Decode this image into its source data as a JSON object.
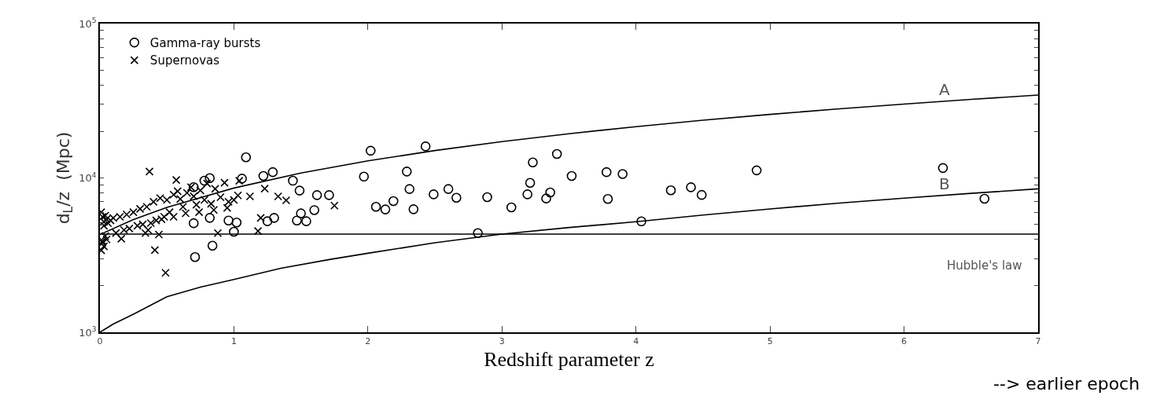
{
  "chart_data": {
    "type": "scatter",
    "xlabel": "Redshift parameter z",
    "ylabel": "d$_{L}$/z  (Mpc)",
    "log": "y",
    "legend": "top left",
    "xlim": [
      0,
      7
    ],
    "xticks": [
      0,
      1,
      2,
      3,
      4,
      5,
      6,
      7
    ],
    "ylim": [
      1000,
      100000
    ],
    "yticks": [
      {
        "value": 1000,
        "label": "10$^{3}$"
      },
      {
        "value": 2000,
        "label": null
      },
      {
        "value": 3000,
        "label": null
      },
      {
        "value": 4000,
        "label": null
      },
      {
        "value": 5000,
        "label": null
      },
      {
        "value": 6000,
        "label": null
      },
      {
        "value": 7000,
        "label": null
      },
      {
        "value": 8000,
        "label": null
      },
      {
        "value": 9000,
        "label": null
      },
      {
        "value": 10000,
        "label": "10$^{4}$"
      },
      {
        "value": 20000,
        "label": null
      },
      {
        "value": 30000,
        "label": null
      },
      {
        "value": 40000,
        "label": null
      },
      {
        "value": 50000,
        "label": null
      },
      {
        "value": 60000,
        "label": null
      },
      {
        "value": 70000,
        "label": null
      },
      {
        "value": 80000,
        "label": null
      },
      {
        "value": 90000,
        "label": null
      },
      {
        "value": 100000,
        "label": "10$^{5}$"
      }
    ],
    "ref_lines": [
      {
        "axis": "y",
        "value": 4330,
        "label": "Hubble's law",
        "color": "#000000"
      }
    ],
    "annotations": [
      "--> earlier epoch"
    ],
    "series": [
      {
        "name": "Gamma-ray bursts",
        "marker": "circle",
        "color": "#000000",
        "x": [
          2.02,
          2.43,
          1.97,
          2.29,
          2.31,
          2.49,
          2.6,
          2.66,
          2.06,
          2.13,
          2.19,
          2.34,
          2.89,
          2.82,
          3.07,
          3.23,
          3.41,
          3.21,
          3.19,
          3.36,
          3.33,
          3.52,
          3.78,
          3.9,
          3.79,
          1.62,
          1.71,
          4.26,
          4.41,
          4.49,
          4.04,
          4.9,
          6.29,
          6.6,
          1.09,
          1.06,
          1.22,
          1.29,
          1.44,
          1.49,
          1.6,
          1.47,
          1.54,
          1.5,
          1.3,
          1.25,
          1.02,
          1.0,
          0.96,
          0.84,
          0.71,
          0.7,
          0.82,
          0.7,
          0.78,
          0.82
        ],
        "values": [
          15000,
          16000,
          10200,
          11000,
          8470,
          7830,
          8470,
          7440,
          6500,
          6250,
          7080,
          6270,
          7500,
          4390,
          6440,
          12600,
          14300,
          9290,
          7830,
          8050,
          7360,
          10300,
          10900,
          10600,
          7310,
          7740,
          7740,
          8310,
          8700,
          7760,
          5230,
          11200,
          11600,
          7330,
          13600,
          9900,
          10300,
          10900,
          9590,
          8280,
          6190,
          5300,
          5240,
          5890,
          5510,
          5240,
          5140,
          4480,
          5300,
          3640,
          3070,
          5090,
          5510,
          8710,
          9590,
          9970
        ]
      },
      {
        "name": "Supernovas",
        "marker": "cross",
        "color": "#000000",
        "x": [
          0.01,
          0.01,
          0.02,
          0.02,
          0.02,
          0.03,
          0.03,
          0.03,
          0.04,
          0.04,
          0.05,
          0.05,
          0.06,
          0.08,
          0.1,
          0.12,
          0.15,
          0.18,
          0.2,
          0.22,
          0.25,
          0.28,
          0.3,
          0.32,
          0.35,
          0.38,
          0.4,
          0.42,
          0.45,
          0.48,
          0.5,
          0.52,
          0.55,
          0.58,
          0.6,
          0.62,
          0.65,
          0.68,
          0.7,
          0.72,
          0.75,
          0.78,
          0.8,
          0.83,
          0.86,
          0.9,
          0.93,
          0.96,
          1.0,
          1.03,
          0.46,
          0.55,
          0.64,
          0.74,
          0.85,
          0.95,
          0.37,
          0.57,
          0.16,
          0.34,
          0.41,
          0.49,
          0.88,
          1.18,
          1.12,
          1.23,
          1.33,
          1.39,
          1.04,
          1.75,
          1.2,
          0.36,
          0.44
        ],
        "values": [
          3400,
          6000,
          3800,
          5600,
          3900,
          5200,
          3600,
          4900,
          4200,
          5700,
          4000,
          5400,
          5100,
          5300,
          5500,
          4400,
          5600,
          4600,
          5800,
          4700,
          6000,
          4900,
          6300,
          5000,
          6500,
          5100,
          7000,
          5300,
          7400,
          5600,
          7200,
          6000,
          7800,
          8200,
          7300,
          6500,
          8000,
          8700,
          7600,
          6700,
          8300,
          7200,
          9200,
          6800,
          8500,
          7500,
          9300,
          7000,
          7200,
          7700,
          5400,
          5600,
          5900,
          6000,
          6200,
          6400,
          11000,
          9700,
          4040,
          4390,
          3410,
          2430,
          4390,
          4530,
          7590,
          8530,
          7590,
          7160,
          9590,
          6620,
          5510,
          4600,
          4300
        ]
      },
      {
        "name": "A",
        "type": "line",
        "color": "#000000",
        "x": [
          0,
          0.25,
          0.5,
          1,
          1.5,
          2,
          2.5,
          3,
          3.5,
          4,
          4.5,
          5,
          5.5,
          6,
          6.5,
          7
        ],
        "values": [
          4300,
          5380,
          6450,
          8600,
          10750,
          12900,
          15050,
          17200,
          19350,
          21500,
          23650,
          25800,
          27950,
          30100,
          32250,
          34400
        ]
      },
      {
        "name": "B",
        "type": "line",
        "color": "#000000",
        "x": [
          0,
          0.1,
          0.25,
          0.5,
          0.75,
          1,
          1.35,
          1.72,
          2,
          2.5,
          3,
          3.5,
          4,
          4.5,
          5,
          5.5,
          6,
          6.5,
          7
        ],
        "values": [
          1000,
          1130,
          1310,
          1700,
          1960,
          2200,
          2600,
          2970,
          3250,
          3800,
          4330,
          4770,
          5200,
          5750,
          6300,
          6850,
          7400,
          7950,
          8500
        ]
      }
    ]
  }
}
